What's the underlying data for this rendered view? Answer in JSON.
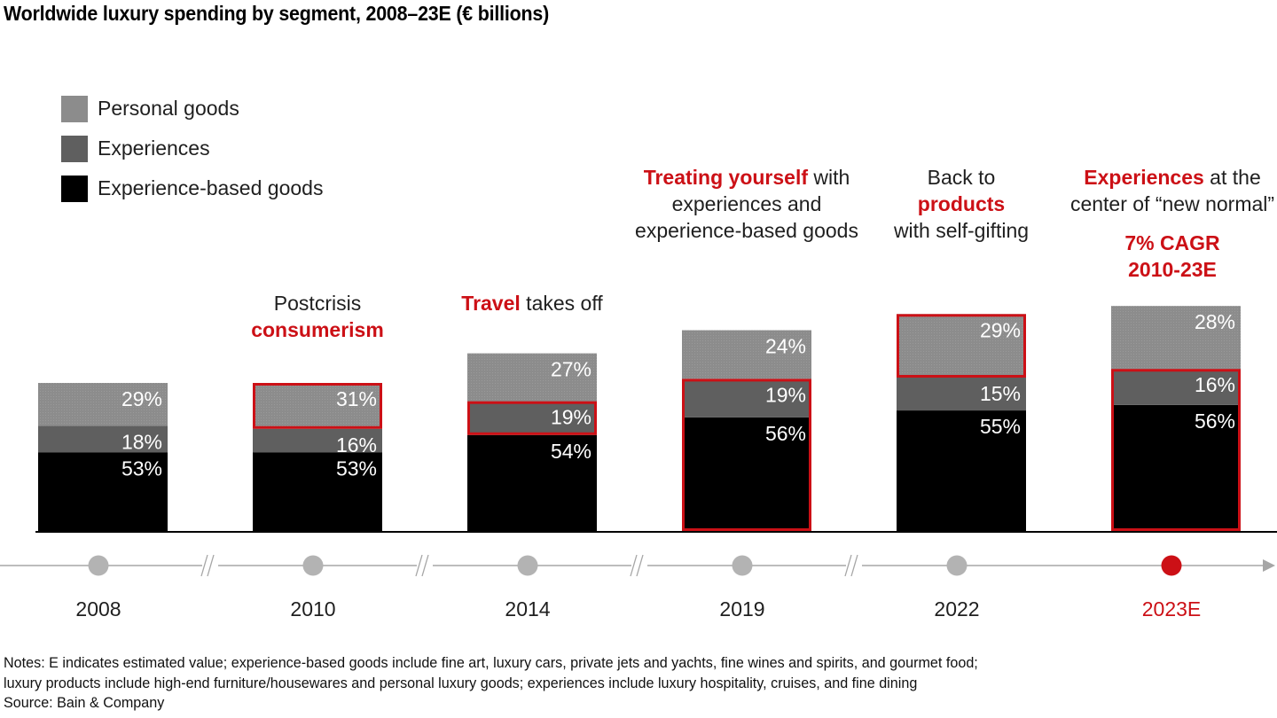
{
  "title": "Worldwide luxury spending by segment, 2008–23E (€ billions)",
  "colors": {
    "personal_goods": "#8c8c8c",
    "experiences": "#5f5f5f",
    "experience_based_goods": "#000000",
    "highlight": "#cc1016",
    "timeline": "#bdbdbd",
    "timeline_dot": "#b3b3b3",
    "timeline_dot_active": "#cc1016"
  },
  "legend": [
    {
      "label": "Personal goods",
      "key": "personal_goods"
    },
    {
      "label": "Experiences",
      "key": "experiences"
    },
    {
      "label": "Experience-based goods",
      "key": "experience_based_goods"
    }
  ],
  "annotations": {
    "y2010": {
      "line1": "Postcrisis",
      "line2_red": "consumerism"
    },
    "y2014": {
      "red": "Travel",
      "rest": " takes off"
    },
    "y2019": {
      "red": "Treating yourself",
      "rest1": " with",
      "line2": "experiences and",
      "line3": "experience-based goods"
    },
    "y2022": {
      "line1": "Back to",
      "line2_red": "products",
      "line3": "with self-gifting"
    },
    "y2023": {
      "red": "Experiences",
      "rest1": " at the",
      "line2": "center of “new normal”",
      "cagr1": "7% CAGR",
      "cagr2": "2010-23E"
    }
  },
  "chart_data": {
    "type": "bar",
    "stacked": true,
    "title": "Worldwide luxury spending by segment, 2008–23E (€ billions)",
    "xlabel": "",
    "ylabel": "",
    "y_axis_shown": false,
    "grid": false,
    "legend_position": "top-left",
    "categories": [
      "2008",
      "2010",
      "2014",
      "2019",
      "2022",
      "2023E"
    ],
    "category_highlight": [
      false,
      false,
      false,
      false,
      false,
      true
    ],
    "relative_total_index": [
      1.0,
      1.0,
      1.2,
      1.37,
      1.48,
      1.52
    ],
    "series": [
      {
        "name": "Experience-based goods",
        "key": "experience_based_goods",
        "values": [
          53,
          53,
          54,
          56,
          55,
          56
        ],
        "labels": [
          "53%",
          "53%",
          "54%",
          "56%",
          "55%",
          "56%"
        ]
      },
      {
        "name": "Experiences",
        "key": "experiences",
        "values": [
          18,
          16,
          19,
          19,
          15,
          16
        ],
        "labels": [
          "18%",
          "16%",
          "19%",
          "19%",
          "15%",
          "16%"
        ]
      },
      {
        "name": "Personal goods",
        "key": "personal_goods",
        "values": [
          29,
          31,
          27,
          24,
          29,
          28
        ],
        "labels": [
          "29%",
          "31%",
          "27%",
          "24%",
          "29%",
          "28%"
        ]
      }
    ],
    "highlight_boxes": [
      {
        "category": "2010",
        "segments": [
          "Personal goods"
        ]
      },
      {
        "category": "2014",
        "segments": [
          "Experiences"
        ]
      },
      {
        "category": "2019",
        "segments": [
          "Experience-based goods",
          "Experiences"
        ]
      },
      {
        "category": "2022",
        "segments": [
          "Personal goods"
        ]
      },
      {
        "category": "2023E",
        "segments": [
          "Experience-based goods",
          "Experiences"
        ]
      }
    ],
    "axis_breaks_between": [
      [
        "2008",
        "2010"
      ],
      [
        "2010",
        "2014"
      ],
      [
        "2014",
        "2019"
      ],
      [
        "2019",
        "2022"
      ]
    ],
    "unit": "% share of total spending"
  },
  "notes": {
    "line1": "Notes: E indicates estimated value; experience-based goods include fine art, luxury cars, private jets and yachts, fine wines and spirits, and gourmet food;",
    "line2": "luxury products include high-end furniture/housewares and personal luxury goods; experiences include luxury hospitality, cruises, and fine dining",
    "source": "Source: Bain & Company"
  }
}
